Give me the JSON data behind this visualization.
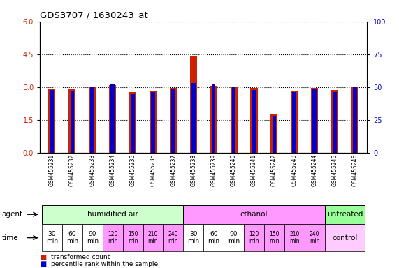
{
  "title": "GDS3707 / 1630243_at",
  "samples": [
    "GSM455231",
    "GSM455232",
    "GSM455233",
    "GSM455234",
    "GSM455235",
    "GSM455236",
    "GSM455237",
    "GSM455238",
    "GSM455239",
    "GSM455240",
    "GSM455241",
    "GSM455242",
    "GSM455243",
    "GSM455244",
    "GSM455245",
    "GSM455246"
  ],
  "transformed_count": [
    2.93,
    2.93,
    3.0,
    3.08,
    2.78,
    2.85,
    2.97,
    4.42,
    3.07,
    3.02,
    2.97,
    1.78,
    2.85,
    2.95,
    2.88,
    3.0
  ],
  "percentile_rank": [
    48,
    47,
    50,
    52,
    45,
    46,
    49,
    53,
    52,
    50,
    48,
    28,
    46,
    49,
    46,
    50
  ],
  "bar_color": "#cc2200",
  "pct_color": "#0000cc",
  "ylim_left": [
    0,
    6
  ],
  "ylim_right": [
    0,
    100
  ],
  "yticks_left": [
    0,
    1.5,
    3.0,
    4.5,
    6
  ],
  "yticks_right": [
    0,
    25,
    50,
    75,
    100
  ],
  "agent_groups": [
    {
      "label": "humidified air",
      "start": 0,
      "end": 7,
      "color": "#ccffcc"
    },
    {
      "label": "ethanol",
      "start": 7,
      "end": 14,
      "color": "#ff99ff"
    },
    {
      "label": "untreated",
      "start": 14,
      "end": 16,
      "color": "#99ff99"
    }
  ],
  "time_bg_colors": [
    "#ffffff",
    "#ffffff",
    "#ffffff",
    "#ff99ff",
    "#ff99ff",
    "#ff99ff",
    "#ff99ff",
    "#ffffff",
    "#ffffff",
    "#ffffff",
    "#ff99ff",
    "#ff99ff",
    "#ff99ff",
    "#ff99ff"
  ],
  "time_labels_14": [
    "30\nmin",
    "60\nmin",
    "90\nmin",
    "120\nmin",
    "150\nmin",
    "210\nmin",
    "240\nmin",
    "30\nmin",
    "60\nmin",
    "90\nmin",
    "120\nmin",
    "150\nmin",
    "210\nmin",
    "240\nmin"
  ],
  "control_label": "control",
  "control_color": "#ffccff",
  "legend_items": [
    {
      "label": "transformed count",
      "color": "#cc2200"
    },
    {
      "label": "percentile rank within the sample",
      "color": "#0000cc"
    }
  ],
  "fig_bg": "#ffffff"
}
